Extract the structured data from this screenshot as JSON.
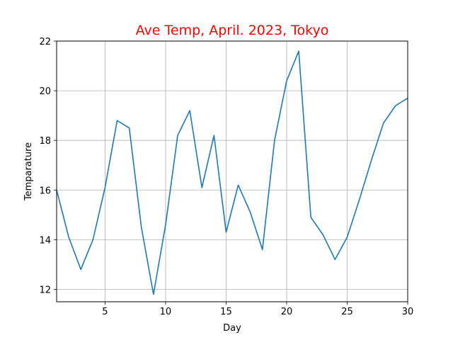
{
  "chart_data": {
    "type": "line",
    "title": "Ave Temp, April. 2023, Tokyo",
    "title_color": "#ff0000",
    "xlabel": "Day",
    "ylabel": "Temparature",
    "xlim": [
      1,
      30
    ],
    "ylim": [
      11.5,
      22
    ],
    "xticks": [
      5,
      10,
      15,
      20,
      25,
      30
    ],
    "yticks": [
      12,
      14,
      16,
      18,
      20,
      22
    ],
    "grid": true,
    "line_color": "#1f77b4",
    "x": [
      1,
      2,
      3,
      4,
      5,
      6,
      7,
      8,
      9,
      10,
      11,
      12,
      13,
      14,
      15,
      16,
      17,
      18,
      19,
      20,
      21,
      22,
      23,
      24,
      25,
      26,
      27,
      28,
      29,
      30
    ],
    "values": [
      16.0,
      14.1,
      12.8,
      14.0,
      16.1,
      18.8,
      18.5,
      14.5,
      11.8,
      14.6,
      18.2,
      19.2,
      16.1,
      18.2,
      14.3,
      16.2,
      15.1,
      13.6,
      18.0,
      20.4,
      21.6,
      14.9,
      14.2,
      13.2,
      14.1,
      15.6,
      17.2,
      18.7,
      19.4,
      19.7
    ]
  }
}
